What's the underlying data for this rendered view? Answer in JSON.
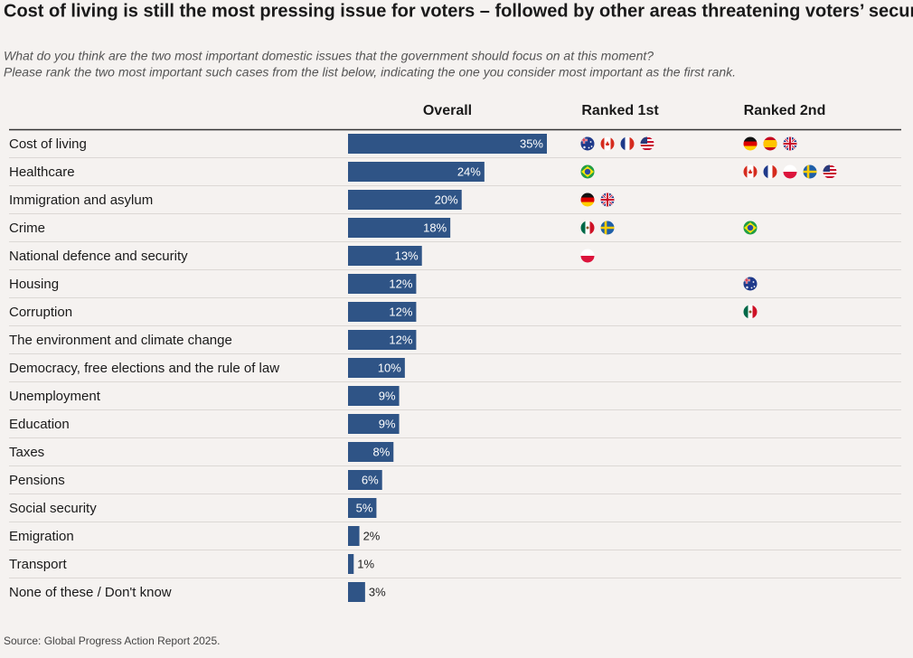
{
  "chart_data": {
    "type": "bar",
    "title": "Cost of living is still the most pressing issue for voters – followed by other areas threatening voters’ security",
    "subtitle": [
      "What do you think are the two most important domestic issues that the government should focus on at this moment?",
      "Please rank the two most important such cases from the list below, indicating the one you consider most important as the first rank."
    ],
    "columns": [
      "Overall",
      "Ranked 1st",
      "Ranked 2nd"
    ],
    "categories": [
      "Cost of living",
      "Healthcare",
      "Immigration and asylum",
      "Crime",
      "National defence and security",
      "Housing",
      "Corruption",
      "The environment and climate change",
      "Democracy, free elections and the rule of law",
      "Unemployment",
      "Education",
      "Taxes",
      "Pensions",
      "Social security",
      "Emigration",
      "Transport",
      "None of these / Don't know"
    ],
    "values": [
      35,
      24,
      20,
      18,
      13,
      12,
      12,
      12,
      10,
      9,
      9,
      8,
      6,
      5,
      2,
      1,
      3
    ],
    "value_labels": [
      "35%",
      "24%",
      "20%",
      "18%",
      "13%",
      "12%",
      "12%",
      "12%",
      "10%",
      "9%",
      "9%",
      "8%",
      "6%",
      "5%",
      "2%",
      "1%",
      "3%"
    ],
    "color": "#2f5486",
    "source": "Source: Global Progress Action Report 2025."
  }
}
